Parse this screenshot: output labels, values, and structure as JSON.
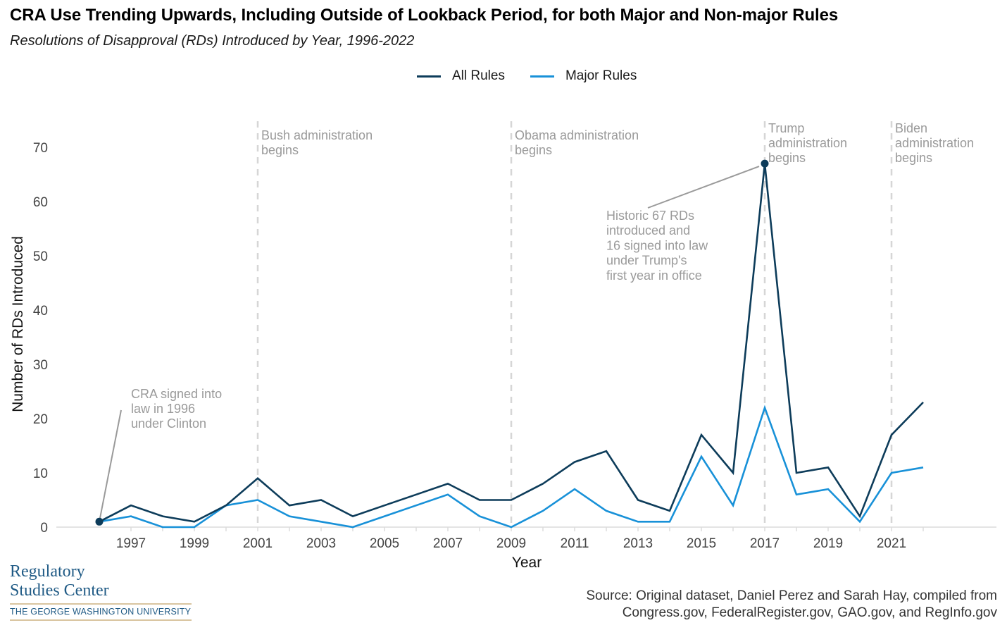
{
  "header": {
    "title": "CRA Use Trending Upwards, Including Outside of Lookback Period, for both Major and Non-major Rules",
    "subtitle": "Resolutions of Disapproval (RDs) Introduced by Year, 1996-2022"
  },
  "legend": {
    "items": [
      {
        "label": "All Rules",
        "color": "#0d3c5a"
      },
      {
        "label": "Major Rules",
        "color": "#1891d8"
      }
    ]
  },
  "chart_data": {
    "type": "line",
    "title": "CRA Use Trending Upwards, Including Outside of Lookback Period, for both Major and Non-major Rules",
    "subtitle": "Resolutions of Disapproval (RDs) Introduced by Year, 1996-2022",
    "xlabel": "Year",
    "ylabel": "Number of RDs Introduced",
    "x": [
      1996,
      1997,
      1998,
      1999,
      2000,
      2001,
      2002,
      2003,
      2004,
      2005,
      2006,
      2007,
      2008,
      2009,
      2010,
      2011,
      2012,
      2013,
      2014,
      2015,
      2016,
      2017,
      2018,
      2019,
      2020,
      2021,
      2022
    ],
    "series": [
      {
        "name": "All Rules",
        "color": "#0d3c5a",
        "values": [
          1,
          4,
          2,
          1,
          4,
          9,
          4,
          5,
          2,
          4,
          6,
          8,
          5,
          5,
          8,
          12,
          14,
          5,
          3,
          17,
          10,
          67,
          10,
          11,
          2,
          17,
          23
        ]
      },
      {
        "name": "Major Rules",
        "color": "#1891d8",
        "values": [
          1,
          2,
          0,
          0,
          4,
          5,
          2,
          1,
          0,
          2,
          4,
          6,
          2,
          0,
          3,
          7,
          3,
          1,
          1,
          13,
          4,
          22,
          6,
          7,
          1,
          10,
          11
        ]
      }
    ],
    "xlim": [
      1994.9,
      2025.6
    ],
    "ylim": [
      0,
      70
    ],
    "xticks": [
      1997,
      1999,
      2001,
      2003,
      2005,
      2007,
      2009,
      2011,
      2013,
      2015,
      2017,
      2019,
      2021
    ],
    "xtick_labels": [
      "1997",
      "1999",
      "2001",
      "2003",
      "2005",
      "2007",
      "2009",
      "2011",
      "2013",
      "2015",
      "2017",
      "2019",
      "2021"
    ],
    "yticks": [
      0,
      10,
      20,
      30,
      40,
      50,
      60,
      70
    ],
    "ytick_labels": [
      "0",
      "10",
      "20",
      "30",
      "40",
      "50",
      "60",
      "70"
    ],
    "grid": false,
    "legend_position": "top-center",
    "vlines": [
      {
        "x": 2001,
        "label": [
          "Bush administration",
          "begins"
        ]
      },
      {
        "x": 2009,
        "label": [
          "Obama administration",
          "begins"
        ]
      },
      {
        "x": 2017,
        "label": [
          "Trump",
          "administration",
          "begins"
        ]
      },
      {
        "x": 2021,
        "label": [
          "Biden",
          "administration",
          "begins"
        ]
      }
    ],
    "annotations": [
      {
        "point": {
          "x": 1996,
          "y": 1
        },
        "text": [
          "CRA signed into",
          "law in 1996",
          "under Clinton"
        ]
      },
      {
        "point": {
          "x": 2017,
          "y": 67
        },
        "text": [
          "Historic 67 RDs",
          "introduced and",
          "16 signed into law",
          "under Trump's",
          "first year in office"
        ]
      }
    ]
  },
  "footer": {
    "logo": {
      "line1": "Regulatory",
      "line2": "Studies Center",
      "university": "THE GEORGE WASHINGTON UNIVERSITY"
    },
    "source_line1": "Source: Original dataset, Daniel Perez and Sarah Hay, compiled from",
    "source_line2": "Congress.gov, FederalRegister.gov, GAO.gov, and RegInfo.gov"
  }
}
